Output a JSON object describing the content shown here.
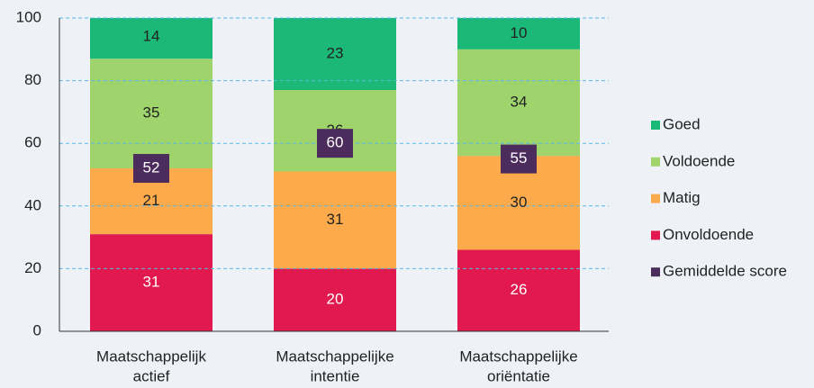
{
  "chart_data": {
    "type": "bar",
    "stacked": true,
    "categories": [
      [
        "Maatschappelijk",
        "actief"
      ],
      [
        "Maatschappelijke",
        "intentie"
      ],
      [
        "Maatschappelijke",
        "oriëntatie"
      ]
    ],
    "series": [
      {
        "name": "Onvoldoende",
        "color": "#e2194f",
        "values": [
          31,
          20,
          26
        ]
      },
      {
        "name": "Matig",
        "color": "#fcaa4b",
        "values": [
          21,
          31,
          30
        ]
      },
      {
        "name": "Voldoende",
        "color": "#9fd46c",
        "values": [
          35,
          26,
          34
        ]
      },
      {
        "name": "Goed",
        "color": "#1bb878",
        "values": [
          14,
          23,
          10
        ]
      },
      {
        "name": "Gemiddelde score",
        "color": "#4b2c5c",
        "kind": "marker",
        "values": [
          52,
          60,
          55
        ]
      }
    ],
    "ylim": [
      0,
      100
    ],
    "yticks": [
      0,
      20,
      40,
      60,
      80,
      100
    ],
    "grid": true,
    "legend": "right"
  }
}
